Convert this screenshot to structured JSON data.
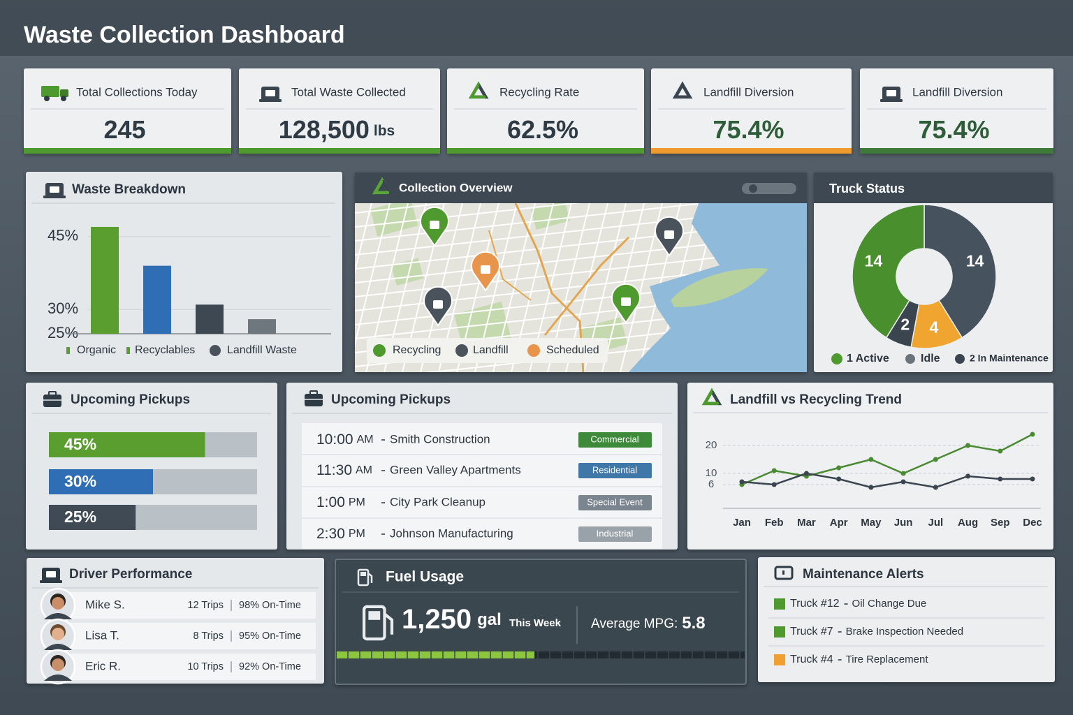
{
  "header": {
    "title": "Waste Collection Dashboard"
  },
  "kpis": [
    {
      "label": "Total Collections Today",
      "value": "245",
      "color": "#4f9a2e",
      "value_color": "#2e3a44"
    },
    {
      "label": "Total Waste Collected",
      "value": "128,500",
      "unit": "lbs",
      "color": "#4f9a2e",
      "value_color": "#2e3a44"
    },
    {
      "label": "Recycling Rate",
      "value": "62.5%",
      "color": "#4f9a2e",
      "value_color": "#2e3a44"
    },
    {
      "label": "Landfill Diversion",
      "value": "75.4%",
      "color": "#ef9a2e",
      "value_color": "#2f5d3a"
    },
    {
      "label": "Landfill Diversion",
      "value": "75.4%",
      "color": "#3f7a3a",
      "value_color": "#2f5d3a"
    }
  ],
  "chart_data": [
    {
      "type": "bar",
      "title": "Waste Breakdown",
      "categories": [
        null,
        null,
        null,
        null
      ],
      "values": [
        47,
        39,
        31,
        28
      ],
      "colors": [
        "#5a9e2f",
        "#2f6db5",
        "#3d4852",
        "#6e767e"
      ],
      "legend": [
        {
          "name": "Organic",
          "color": "#5a9e2f"
        },
        {
          "name": "Recyclables",
          "color": "#5a9e2f"
        },
        {
          "name": "Landfill Waste",
          "color": "#4a535c"
        }
      ],
      "ylim": [
        25,
        48
      ],
      "yticks": [
        {
          "value": 25,
          "label": "25%"
        },
        {
          "value": 30,
          "label": "30%"
        },
        {
          "value": 45,
          "label": "45%"
        }
      ],
      "grid": true
    },
    {
      "type": "pie",
      "title": "Truck Status",
      "values": [
        14,
        4,
        2,
        14
      ],
      "colors": [
        "#46525e",
        "#f0a530",
        "#3a4550",
        "#4a8f2e"
      ],
      "legend": [
        {
          "name": "1 Active",
          "color": "#4f9a2e"
        },
        {
          "name": "Idle",
          "color": "#6b747c"
        },
        {
          "name": "2 In Maintenance",
          "color": "#3a4550"
        }
      ]
    },
    {
      "type": "progress",
      "title": "Upcoming Pickups",
      "values": [
        45,
        30,
        25
      ],
      "value_labels": [
        "45%",
        "30%",
        "25%"
      ],
      "colors": [
        "#5a9e2f",
        "#2f6db5",
        "#3f4a55"
      ],
      "xlim": [
        0,
        60
      ]
    },
    {
      "type": "line",
      "title": "Landfill vs Recycling Trend",
      "categories": [
        "Jan",
        "Feb",
        "Mar",
        "Apr",
        "May",
        "Jun",
        "Jul",
        "Aug",
        "Sep",
        "Dec"
      ],
      "series": [
        {
          "color": "#4a8a32",
          "values": [
            6,
            11,
            9,
            12,
            15,
            10,
            15,
            20,
            18,
            24
          ]
        },
        {
          "color": "#3a4550",
          "values": [
            7,
            6,
            10,
            8,
            5,
            7,
            5,
            9,
            8,
            8
          ]
        }
      ],
      "ylim": [
        0,
        30
      ],
      "yticks": [
        6,
        10,
        20
      ],
      "grid": true
    }
  ],
  "map": {
    "title": "Collection Overview",
    "legend": [
      {
        "label": "Recycling",
        "color": "#4f9a2e"
      },
      {
        "label": "Landfill",
        "color": "#4a535c"
      },
      {
        "label": "Scheduled",
        "color": "#e8944a"
      }
    ]
  },
  "schedule": {
    "title": "Upcoming Pickups",
    "rows": [
      {
        "time": "10:00",
        "period": "AM",
        "name": "Smith Construction",
        "tag": "Commercial",
        "tag_color": "#3d8a3a"
      },
      {
        "time": "11:30",
        "period": "AM",
        "name": "Green Valley Apartments",
        "tag": "Residential",
        "tag_color": "#3f78a8"
      },
      {
        "time": "1:00",
        "period": "PM",
        "name": "City Park Cleanup",
        "tag": "Special Event",
        "tag_color": "#7b8590"
      },
      {
        "time": "2:30",
        "period": "PM",
        "name": "Johnson Manufacturing",
        "tag": "Industrial",
        "tag_color": "#9aa2a9"
      }
    ]
  },
  "drivers": {
    "title": "Driver Performance",
    "rows": [
      {
        "name": "Mike S.",
        "trips": "12 Trips",
        "on_time": "98% On-Time"
      },
      {
        "name": "Lisa T.",
        "trips": "8 Trips",
        "on_time": "95% On-Time"
      },
      {
        "name": "Eric R.",
        "trips": "10 Trips",
        "on_time": "92% On-Time"
      }
    ]
  },
  "fuel": {
    "title": "Fuel Usage",
    "value": "1,250",
    "unit": "gal",
    "period": "This Week",
    "mpg_label": "Average MPG:",
    "mpg": "5.8"
  },
  "alerts": {
    "title": "Maintenance Alerts",
    "items": [
      {
        "truck": "Truck #12",
        "issue": "Oil Change Due",
        "color": "#4f9a2e"
      },
      {
        "truck": "Truck #7",
        "issue": "Brake Inspection Needed",
        "color": "#4f9a2e"
      },
      {
        "truck": "Truck #4",
        "issue": "Tire Replacement",
        "color": "#f0a030"
      }
    ]
  }
}
